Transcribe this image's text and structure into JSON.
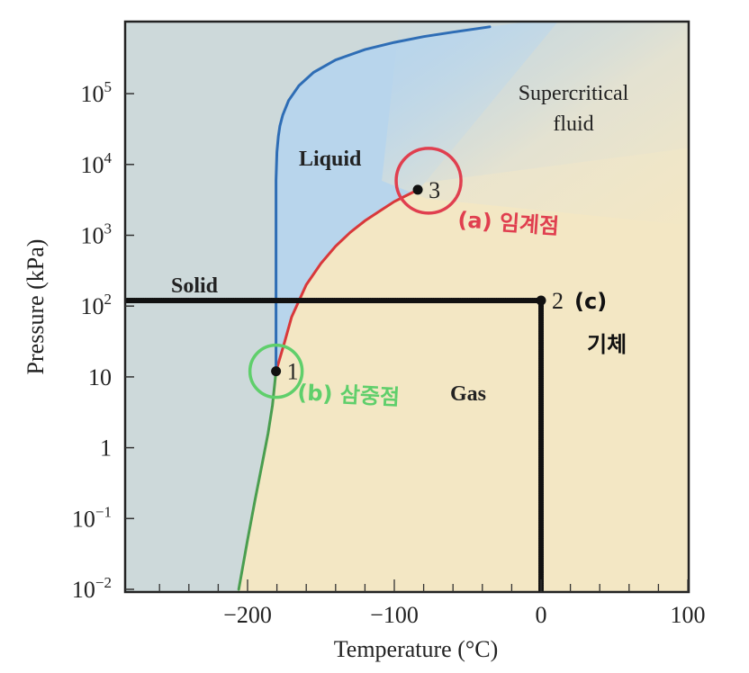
{
  "chart_data": {
    "type": "line",
    "title": "",
    "xlabel": "Temperature (°C)",
    "ylabel": "Pressure (kPa)",
    "xlim": [
      -270,
      100
    ],
    "ylim_log10": [
      -2,
      6
    ],
    "log_y": true,
    "grid": false,
    "x_ticks": [
      {
        "value": -200,
        "label": "−200"
      },
      {
        "value": -100,
        "label": "−100"
      },
      {
        "value": 0,
        "label": "0"
      },
      {
        "value": 100,
        "label": "100"
      }
    ],
    "y_ticks": [
      {
        "log": -2,
        "base": "10",
        "exp": "−2"
      },
      {
        "log": -1,
        "base": "10",
        "exp": "−1"
      },
      {
        "log": 0,
        "base": "1",
        "exp": ""
      },
      {
        "log": 1,
        "base": "10",
        "exp": ""
      },
      {
        "log": 2,
        "base": "10",
        "exp": "2"
      },
      {
        "log": 3,
        "base": "10",
        "exp": "3"
      },
      {
        "log": 4,
        "base": "10",
        "exp": "4"
      },
      {
        "log": 5,
        "base": "10",
        "exp": "5"
      }
    ],
    "regions": {
      "solid": "Solid",
      "liquid": "Liquid",
      "gas": "Gas",
      "supercritical_1": "Supercritical",
      "supercritical_2": "fluid"
    },
    "series": [
      {
        "key": "sublimation",
        "color": "#4a9e4f",
        "x": [
          -206,
          -200,
          -195,
          -190,
          -186,
          -183,
          -180.6
        ],
        "y": [
          0.01,
          0.05,
          0.18,
          0.6,
          1.6,
          4.0,
          12.0
        ]
      },
      {
        "key": "vaporization",
        "color": "#d9383a",
        "x": [
          -180.6,
          -175,
          -170,
          -160,
          -150,
          -140,
          -130,
          -120,
          -110,
          -100,
          -90,
          -84
        ],
        "y": [
          12.0,
          30,
          70,
          200,
          400,
          700,
          1100,
          1600,
          2200,
          3000,
          3800,
          4400
        ]
      },
      {
        "key": "fusion",
        "color": "#2e6db5",
        "x": [
          -180.6,
          -180.6,
          -180,
          -179,
          -178,
          -176,
          -172,
          -165,
          -155,
          -140,
          -120,
          -100,
          -80,
          -60,
          -35
        ],
        "y": [
          12.0,
          6000,
          15000,
          25000,
          35000,
          50000,
          80000,
          130000,
          200000,
          300000,
          420000,
          530000,
          640000,
          740000,
          880000
        ]
      }
    ],
    "points": [
      {
        "label": "1",
        "x": -180.6,
        "y": 12.0
      },
      {
        "label": "2",
        "x": 0,
        "y": 120
      },
      {
        "label": "3",
        "x": -84,
        "y": 4400
      }
    ],
    "reference_lines": {
      "pressure": 120,
      "temperature": 0
    },
    "annotations": {
      "critical_point": "(a) 임계점",
      "triple_point": "(b) 삼중점",
      "gas_note_1": "(c)",
      "gas_note_2": "기체"
    },
    "colors": {
      "solid_bg": "#cdd9da",
      "liquid_bg": "#b8d5ec",
      "gas_bg": "#f3e7c4",
      "critical_circle": "#e03f4f",
      "triple_circle": "#5fcf6b",
      "marker_line": "#111111"
    }
  }
}
